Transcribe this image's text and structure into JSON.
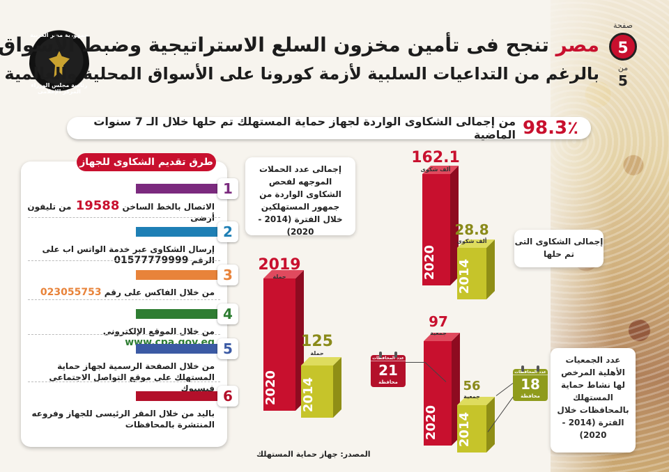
{
  "header": {
    "title_accent": "مصر",
    "title_rest": "تنجح فى تأمين مخزون السلع الاستراتيجية وضبط الأسواق",
    "subtitle": "بالرغم من التداعيات السلبية لأزمة كورونا على الأسواق المحلية والعالمية",
    "seal_top": "جمهورية مصر العربية",
    "seal_mid": "رئاسة مجلس الوزراء",
    "seal_bottom": "المركز الإعلامى"
  },
  "page": {
    "label": "صفحة",
    "number": "5",
    "of_label": "من",
    "total": "5"
  },
  "banner": {
    "percent": "98.3٪",
    "text": "من إجمالى الشكاوى الواردة لجهاز حماية المستهلك تم حلها خلال الـ 7 سنوات الماضية"
  },
  "methods": {
    "title": "طرق تقديم الشكاوى للجهاز",
    "items": [
      {
        "num": "1",
        "text": "الاتصال بالخط الساخن",
        "value": "19588",
        "suffix": "من تليفون أرضى",
        "color": "#7b2a7e"
      },
      {
        "num": "2",
        "text": "إرسال الشكاوى عبر خدمة الواتس اب على الرقم",
        "value": "01577779999",
        "color": "#1e7fb5"
      },
      {
        "num": "3",
        "text": "من خلال الفاكس على رقم",
        "value": "023055753",
        "color": "#e8833a"
      },
      {
        "num": "4",
        "text": "من خلال الموقع الإلكترونى",
        "value": "www.cpa.gov.eg",
        "color": "#2e7d32"
      },
      {
        "num": "5",
        "text": "من خلال الصفحة الرسمية لجهاز حماية المستهلك على موقع التواصل الاجتماعى فيسبوك",
        "color": "#3b5aa4"
      },
      {
        "num": "6",
        "text": "باليد من خلال المقر الرئيسى للجهاز وفروعه المنتشرة بالمحافظات",
        "color": "#b3102a"
      }
    ]
  },
  "campaigns": {
    "card_text": "إجمالى عدد الحملات الموجهه لفحص الشكاوى الواردة من جمهور المستهلكين خلال الفترة (2014 - 2020)",
    "bars": [
      {
        "year": "2020",
        "value": "2019",
        "unit": "حملة"
      },
      {
        "year": "2014",
        "value": "125",
        "unit": "حملة"
      }
    ]
  },
  "complaints": {
    "card_text": "إجمالى الشكاوى التى تم حلها",
    "bars": [
      {
        "year": "2020",
        "value": "162.1",
        "unit": "ألف شكوى"
      },
      {
        "year": "2014",
        "value": "28.8",
        "unit": "ألف شكوى"
      }
    ]
  },
  "associations": {
    "card_text": "عدد الجمعيات الأهلية المرخص لها نشاط حماية المستهلك بالمحافظات خلال الفترة (2014 - 2020)",
    "bars": [
      {
        "year": "2020",
        "value": "97",
        "unit": "جمعية",
        "governorates": "21",
        "gov_unit": "محافظة",
        "cal_head": "عدد المحافظات"
      },
      {
        "year": "2014",
        "value": "56",
        "unit": "جمعية",
        "governorates": "18",
        "gov_unit": "محافظة",
        "cal_head": "عدد المحافظات"
      }
    ]
  },
  "colors": {
    "red": "#c8102e",
    "olive": "#c6c42a",
    "olive_text": "#8a8a1a"
  },
  "source": "المصدر: جهاز حماية المستهلك"
}
